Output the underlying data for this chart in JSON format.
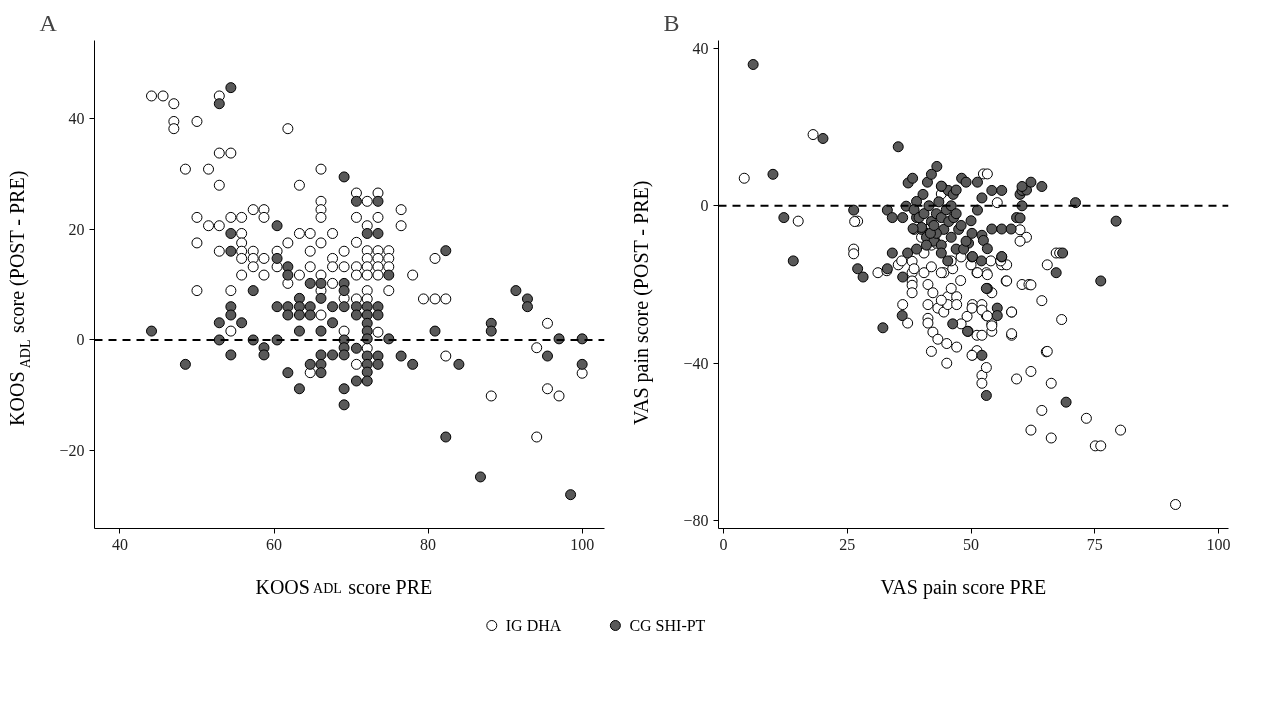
{
  "chart_data": [
    {
      "type": "scatter",
      "title": "A",
      "xlabel": "KOOS$_{ADL}$ score PRE",
      "ylabel": "KOOS$_{ADL}$ score (POST - PRE)",
      "xlim": [
        36.7,
        102.9
      ],
      "ylim": [
        -34,
        54
      ],
      "xticks": [
        40,
        60,
        80,
        100
      ],
      "yticks": [
        -20,
        0,
        20,
        40
      ],
      "grid": false,
      "marker": "circle",
      "legend": "bottom",
      "ref_lines": [
        {
          "axis": "y",
          "value": 0,
          "line_style": "dashed"
        }
      ],
      "series": [
        {
          "name": "IG DHA",
          "color": "#ffffff",
          "x": [
            44.1,
            45.6,
            47,
            47,
            47,
            50,
            52.9,
            52.9,
            54.4,
            48.5,
            51.5,
            52.9,
            61.8,
            66.1,
            63.3,
            66.1,
            66.1,
            66.1,
            50,
            51.5,
            52.9,
            54.4,
            55.8,
            57.3,
            58.7,
            58.7,
            55.8,
            50,
            52.9,
            55.8,
            55.8,
            55.8,
            57.3,
            57.3,
            57.3,
            58.7,
            60.4,
            60.4,
            55.8,
            58.7,
            61.8,
            63.3,
            64.7,
            64.7,
            64.7,
            61.8,
            63.3,
            66.1,
            67.6,
            67.6,
            67.6,
            66.1,
            66.1,
            67.6,
            69.1,
            69.1,
            69.1,
            50,
            54.4,
            54.4,
            66.1,
            69.1,
            64.7,
            70.7,
            73.5,
            72.1,
            70.7,
            73.5,
            72.1,
            76.5,
            76.5,
            70.7,
            72.1,
            73.5,
            74.9,
            72.1,
            73.5,
            74.9,
            70.7,
            72.1,
            73.5,
            74.9,
            70.7,
            72.1,
            73.5,
            78,
            80.9,
            74.9,
            72.1,
            70.7,
            72.1,
            79.4,
            80.9,
            82.3,
            73.5,
            72.1,
            70.7,
            82.3,
            88.2,
            95.5,
            94.1,
            95.5,
            97,
            94.1,
            100
          ],
          "values": [
            44,
            44,
            42.6,
            39.4,
            38.1,
            39.4,
            44,
            33.7,
            33.7,
            30.8,
            30.8,
            27.9,
            38.1,
            30.8,
            27.9,
            25,
            23.5,
            22.1,
            22.1,
            20.6,
            20.6,
            22.1,
            22.1,
            23.5,
            23.5,
            22.1,
            19.2,
            17.5,
            16,
            17.5,
            16,
            14.7,
            16,
            14.7,
            13.2,
            14.7,
            16,
            13.2,
            11.7,
            11.7,
            17.5,
            19.2,
            19.2,
            16,
            13.2,
            10.2,
            11.7,
            17.5,
            19.2,
            14.7,
            13.2,
            11.7,
            8.9,
            10.2,
            16,
            13.2,
            7.5,
            8.9,
            8.9,
            1.6,
            4.5,
            1.6,
            -5.9,
            26.5,
            26.5,
            25,
            22.1,
            22.1,
            20.6,
            23.5,
            20.6,
            17.6,
            16.1,
            16.1,
            16.1,
            14.7,
            14.7,
            14.7,
            13.2,
            13.2,
            13.2,
            13.2,
            11.7,
            11.7,
            11.7,
            11.7,
            14.7,
            8.9,
            8.9,
            7.4,
            7.4,
            7.4,
            7.4,
            7.4,
            1.4,
            -1.5,
            -4.4,
            -2.9,
            -10.1,
            3,
            -1.4,
            -8.8,
            -10.1,
            -17.5,
            -6
          ]
        },
        {
          "name": "CG SHI-PT",
          "color": "#595959",
          "x": [
            54.4,
            52.9,
            69.1,
            60.4,
            54.4,
            54.4,
            60.4,
            61.8,
            61.8,
            64.7,
            66.1,
            69.1,
            69.1,
            57.3,
            66.1,
            63.3,
            54.4,
            54.4,
            60.4,
            61.8,
            63.3,
            64.7,
            61.8,
            63.3,
            64.7,
            67.6,
            69.1,
            52.9,
            55.8,
            67.6,
            44.1,
            63.3,
            66.1,
            52.9,
            57.3,
            60.4,
            69.1,
            69.1,
            69.1,
            54.4,
            58.7,
            58.7,
            66.1,
            67.6,
            48.5,
            64.7,
            66.1,
            66.1,
            61.8,
            63.3,
            69.1,
            69.1,
            70.7,
            73.5,
            72.1,
            73.5,
            74.9,
            82.3,
            70.7,
            72.1,
            73.5,
            70.7,
            72.1,
            73.5,
            72.1,
            72.1,
            72.1,
            74.9,
            80.9,
            70.7,
            72.1,
            73.5,
            72.1,
            73.5,
            72.1,
            70.7,
            72.1,
            76.5,
            78,
            84,
            88.2,
            88.2,
            91.4,
            92.9,
            92.9,
            95.5,
            97,
            100,
            100,
            82.3,
            86.8,
            98.5
          ],
          "values": [
            45.5,
            42.6,
            29.4,
            20.6,
            19.2,
            16,
            14.7,
            13.2,
            11.7,
            10.2,
            10.2,
            10.2,
            8.9,
            8.9,
            7.5,
            7.5,
            6,
            4.5,
            6,
            6,
            6,
            6,
            4.5,
            4.5,
            4.5,
            6,
            6,
            3.1,
            3.1,
            3.1,
            1.6,
            1.6,
            1.6,
            0,
            0,
            0,
            0,
            -1.4,
            -2.7,
            -2.7,
            -1.4,
            -2.7,
            -2.7,
            -2.7,
            -4.4,
            -4.4,
            -4.4,
            -5.9,
            -5.9,
            -8.8,
            -8.8,
            -11.7,
            25,
            25,
            19.2,
            19.2,
            11.7,
            16.1,
            6,
            6,
            6,
            4.5,
            4.5,
            4.5,
            3,
            1.6,
            0.2,
            0.2,
            1.6,
            -1.5,
            -2.9,
            -2.9,
            -4.4,
            -4.4,
            -5.8,
            -7.4,
            -7.4,
            -2.9,
            -4.4,
            -4.4,
            3,
            1.6,
            8.9,
            7.4,
            6,
            -2.9,
            0.2,
            0.2,
            -4.4,
            -17.5,
            -24.7,
            -27.9
          ]
        }
      ]
    },
    {
      "type": "scatter",
      "title": "B",
      "xlabel": "VAS pain score PRE",
      "ylabel": "VAS pain score (POST - PRE)",
      "xlim": [
        -1,
        102
      ],
      "ylim": [
        -82,
        42
      ],
      "xticks": [
        0,
        25,
        50,
        75,
        100
      ],
      "yticks": [
        -80,
        -40,
        0,
        40
      ],
      "grid": false,
      "marker": "circle",
      "ref_lines": [
        {
          "axis": "y",
          "value": 0,
          "line_style": "dashed"
        }
      ],
      "series": [
        {
          "color": "#ffffff",
          "x": [
            4.2,
            18.1,
            15.1,
            27.1,
            26.3,
            26.3,
            31.2,
            35.3,
            38.1,
            38.1,
            38.1,
            38.1,
            38.1,
            36.2,
            37.2,
            41.3,
            41.3,
            42.3,
            43.3,
            45.1,
            47.1,
            41.3,
            42.3,
            41.3,
            43.3,
            44.5,
            44.5,
            46.3,
            47.9,
            45.3,
            47.1,
            45.3,
            47.1,
            50.3,
            52.2,
            51.2,
            53.1,
            54.2,
            53.1,
            54.2,
            54.2,
            51.2,
            52.2,
            58.2,
            58.2,
            57.1,
            60.3,
            61.7,
            49.2,
            50.3,
            51.2,
            45.1,
            52.2,
            52.2,
            53.1,
            59.2,
            62.1,
            66.2,
            65.2,
            64.3,
            62.1,
            66.2,
            73.3,
            80.2,
            75.1,
            76.2,
            91.3,
            50.2,
            52.5,
            53.3,
            55.3,
            59.9,
            61.2,
            59.9,
            67.2,
            67.9,
            65.4,
            56.2,
            57.2,
            51.3,
            53.3,
            57.2,
            62.1,
            64.3,
            68.3,
            58.2,
            50.2,
            52.2,
            54.2,
            53.3,
            58.2,
            65.4,
            38.5,
            40,
            42,
            44.5,
            42,
            43,
            33,
            36,
            38.5,
            40.5,
            42,
            44,
            46,
            48,
            50,
            54,
            56,
            26.5,
            44,
            40.5,
            46,
            48,
            42,
            44
          ],
          "values": [
            7,
            18.1,
            -3.9,
            -3.9,
            -11,
            -12.2,
            -17,
            -15,
            -14.1,
            -17,
            -19.1,
            -20.2,
            -22.1,
            -25.1,
            -29.8,
            -28.6,
            -29.8,
            -32.1,
            -33.9,
            -35,
            -35.9,
            -20,
            -22.1,
            -25.1,
            -26,
            -27,
            -17,
            -16,
            -19,
            -23.1,
            -23.1,
            -25.1,
            -25.1,
            -25.1,
            -25.1,
            -17,
            -17,
            -22.1,
            -27.9,
            -30,
            -31.9,
            -32.9,
            -32.9,
            -32.9,
            -27,
            -19.1,
            -20,
            -20,
            -28.1,
            -37.9,
            -36.8,
            -40,
            -43.1,
            -45.1,
            -41.1,
            -44,
            -42.1,
            -45.1,
            -37.1,
            -52,
            -57,
            -59,
            -54,
            -57,
            -61,
            -61,
            -75.9,
            -38,
            8.1,
            8.1,
            0.8,
            -6.1,
            -8,
            -9,
            -12,
            -12,
            -15,
            -15,
            -15,
            -17,
            -17.5,
            -19.1,
            -20.1,
            -24.1,
            -28.9,
            -27,
            -26,
            -26.5,
            -30.5,
            -28,
            -32.5,
            -37,
            -6,
            -8,
            -5,
            -8,
            -10,
            -9.5,
            -16.5,
            -14,
            -16,
            -17,
            -15.5,
            -17,
            -14,
            -13,
            -15,
            -14,
            -14,
            -4,
            3,
            -12,
            -21,
            -30,
            -37,
            -24
          ]
        },
        {
          "color": "#595959",
          "x": [
            6,
            20.1,
            35.3,
            43.1,
            10,
            12.2,
            14.1,
            26.3,
            37.3,
            38.2,
            41.2,
            44.1,
            45.4,
            46.4,
            48.1,
            51.3,
            54.2,
            56.2,
            52.2,
            40.3,
            39,
            36.9,
            33.1,
            34.1,
            36.2,
            39,
            51.3,
            50,
            59.2,
            60.3,
            59.9,
            60.3,
            61.2,
            62.1,
            64.3,
            60.3,
            71.1,
            79.3,
            59.9,
            54.2,
            56.2,
            58.1,
            50.2,
            52.2,
            52.5,
            49.5,
            53.3,
            56.2,
            50.2,
            52.1,
            68.5,
            67.2,
            76.2,
            53.3,
            55.3,
            55.3,
            49.4,
            52.2,
            53.1,
            69.2,
            27.1,
            28.2,
            33.1,
            34.1,
            37.2,
            36.2,
            32.2,
            36.1,
            45.3,
            50.3,
            56.2,
            53.1,
            46.3,
            49.3,
            38.5,
            39.5,
            40.5,
            41.5,
            42,
            43,
            43.5,
            44,
            44.5,
            45,
            45.5,
            46,
            46.5,
            47,
            47.5,
            48,
            40,
            41,
            42.5,
            43,
            44,
            46,
            47,
            48.5,
            49,
            41,
            44,
            39,
            41.8,
            42.5,
            40,
            38.3,
            44,
            47,
            49,
            42
          ],
          "values": [
            35.9,
            17.1,
            15,
            10,
            8,
            -3,
            -14,
            -1.1,
            5.8,
            7,
            6,
            4.9,
            3.9,
            2.9,
            7,
            6,
            3.9,
            3.9,
            2,
            2.9,
            1.1,
            -0.1,
            -1.1,
            -3,
            -3,
            -3,
            -1.1,
            -3.8,
            -3,
            0,
            2.9,
            3.9,
            4,
            6,
            4.9,
            4.9,
            0.8,
            -3.9,
            -3.1,
            -5.9,
            -5.9,
            -5.9,
            -7,
            -7.5,
            -8.8,
            -9.5,
            -10.9,
            -13,
            -13,
            -14,
            -12,
            -17,
            -19.1,
            -21,
            -26,
            -27.9,
            -31.9,
            -38,
            -48.2,
            -49.9,
            -16,
            -18.1,
            -16,
            -12,
            -12,
            -18.1,
            -31,
            -27.9,
            -14,
            -12.9,
            -12.9,
            -21,
            -30,
            -31.9,
            -1,
            -3,
            -2,
            0,
            -4,
            -2,
            1,
            -3,
            -6,
            -1,
            -4,
            0,
            -3,
            -2,
            -6,
            -5,
            -6,
            -8,
            -9,
            -7,
            -10,
            -8,
            -11,
            -11,
            -9,
            -10,
            -12,
            -11,
            -7,
            -5,
            -5.5,
            -5.8,
            5,
            4,
            6,
            8
          ]
        }
      ]
    }
  ]
}
